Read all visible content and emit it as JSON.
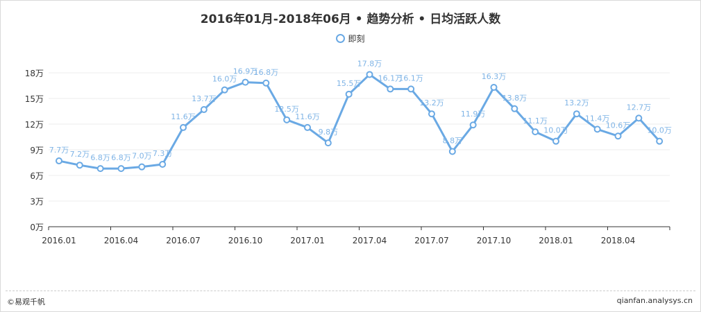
{
  "title": "2016年01月-2018年06月 • 趋势分析 • 日均活跃人数",
  "legend_label": "即刻",
  "footer": {
    "left": "©易观千帆",
    "right": "qianfan.analysys.cn"
  },
  "colors": {
    "series": "#6aa9e4",
    "label": "#7fb4e6",
    "axis": "#333333",
    "grid": "#eeeeee"
  },
  "chart_data": {
    "type": "line",
    "title": "2016年01月-2018年06月 • 趋势分析 • 日均活跃人数",
    "xlabel": "",
    "ylabel": "",
    "ylim": [
      0,
      18
    ],
    "yticks": [
      0,
      3,
      6,
      9,
      12,
      15,
      18
    ],
    "ytick_labels": [
      "0万",
      "3万",
      "6万",
      "9万",
      "12万",
      "15万",
      "18万"
    ],
    "xtick_labels": [
      "2016.01",
      "2016.04",
      "2016.07",
      "2016.10",
      "2017.01",
      "2017.04",
      "2017.07",
      "2017.10",
      "2018.01",
      "2018.04"
    ],
    "x": [
      "2016.01",
      "2016.02",
      "2016.03",
      "2016.04",
      "2016.05",
      "2016.06",
      "2016.07",
      "2016.08",
      "2016.09",
      "2016.10",
      "2016.11",
      "2016.12",
      "2017.01",
      "2017.02",
      "2017.03",
      "2017.04",
      "2017.05",
      "2017.06",
      "2017.07",
      "2017.08",
      "2017.09",
      "2017.10",
      "2017.11",
      "2017.12",
      "2018.01",
      "2018.02",
      "2018.03",
      "2018.04",
      "2018.05",
      "2018.06"
    ],
    "grid": true,
    "legend": "top-center",
    "series": [
      {
        "name": "即刻",
        "values": [
          7.7,
          7.2,
          6.8,
          6.8,
          7.0,
          7.3,
          11.6,
          13.7,
          16.0,
          16.9,
          16.8,
          12.5,
          11.6,
          9.8,
          15.5,
          17.8,
          16.1,
          16.1,
          13.2,
          8.8,
          11.9,
          16.3,
          13.8,
          11.1,
          10.0,
          13.2,
          11.4,
          10.6,
          12.7,
          10.0
        ],
        "labels": [
          "7.7万",
          "7.2万",
          "6.8万",
          "6.8万",
          "7.0万",
          "7.3万",
          "11.6万",
          "13.7万",
          "16.0万",
          "16.9万",
          "16.8万",
          "12.5万",
          "11.6万",
          "9.8万",
          "15.5万",
          "17.8万",
          "16.1万",
          "16.1万",
          "13.2万",
          "8.8万",
          "11.9万",
          "16.3万",
          "13.8万",
          "11.1万",
          "10.0万",
          "13.2万",
          "11.4万",
          "10.6万",
          "12.7万",
          "10.0万"
        ]
      }
    ]
  }
}
